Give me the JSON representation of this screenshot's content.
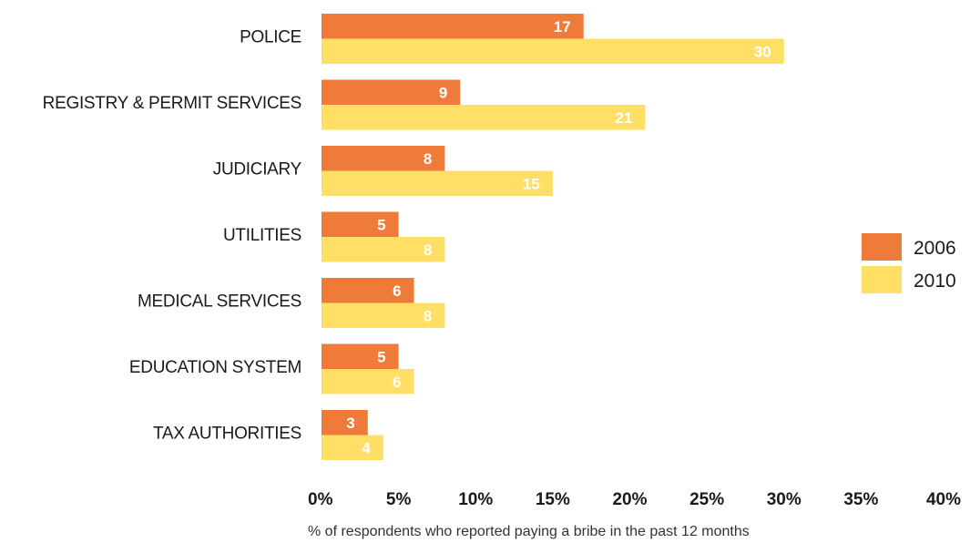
{
  "chart_data": {
    "type": "bar",
    "orientation": "horizontal",
    "categories": [
      "POLICE",
      "REGISTRY & PERMIT SERVICES",
      "JUDICIARY",
      "UTILITIES",
      "MEDICAL SERVICES",
      "EDUCATION SYSTEM",
      "TAX AUTHORITIES"
    ],
    "series": [
      {
        "name": "2006",
        "color": "#EE7B3A",
        "values": [
          17,
          9,
          8,
          5,
          6,
          5,
          3
        ]
      },
      {
        "name": "2010",
        "color": "#FFDF66",
        "values": [
          30,
          21,
          15,
          8,
          8,
          6,
          4
        ]
      }
    ],
    "xlim": [
      0,
      40
    ],
    "x_ticks": [
      "0%",
      "5%",
      "10%",
      "15%",
      "20%",
      "25%",
      "30%",
      "35%",
      "40%"
    ],
    "xlabel": "% of respondents who reported paying a bribe in the past 12 months",
    "ylabel": "",
    "title": "",
    "legend_position": "right",
    "grid": false
  }
}
